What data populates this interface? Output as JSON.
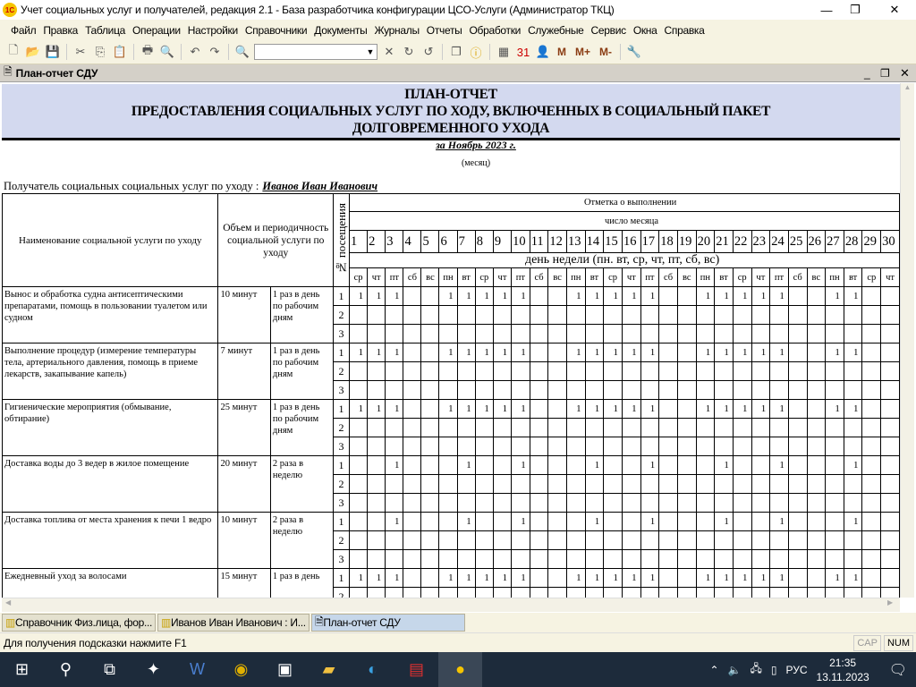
{
  "window": {
    "title": "Учет социальных услуг и получателей, редакция 2.1 - База разработчика конфигурации ЦСО-Услуги (Администратор ТКЦ)",
    "logo": "1С"
  },
  "menu": [
    "Файл",
    "Правка",
    "Таблица",
    "Операции",
    "Настройки",
    "Справочники",
    "Документы",
    "Журналы",
    "Отчеты",
    "Обработки",
    "Служебные",
    "Сервис",
    "Окна",
    "Справка"
  ],
  "toolbar": {
    "search_value": "",
    "m_buttons": [
      "M",
      "M+",
      "M-"
    ]
  },
  "child_window": {
    "title": "План-отчет СДУ"
  },
  "report": {
    "title_lines": [
      "ПЛАН-ОТЧЕТ",
      "ПРЕДОСТАВЛЕНИЯ СОЦИАЛЬНЫХ УСЛУГ ПО ХОДУ, ВКЛЮЧЕННЫХ В СОЦИАЛЬНЫЙ ПАКЕТ",
      "ДОЛГОВРЕМЕННОГО УХОДА"
    ],
    "period": "за Ноябрь 2023 г.",
    "period_caption": "(месяц)",
    "recipient_label": "Получатель социальных социальных услуг по уходу :",
    "recipient_name": "Иванов Иван Иванович",
    "headers": {
      "service": "Наименование социальной услуги по уходу",
      "volume": "Объем и периодичность социальной услуги по уходу",
      "visit_no": "№ посещения",
      "marks": "Отметка о выполнении",
      "day_of_month": "число месяца",
      "weekday": "день недели (пн. вт, ср, чт, пт, сб, вс)"
    },
    "days": [
      1,
      2,
      3,
      4,
      5,
      6,
      7,
      8,
      9,
      10,
      11,
      12,
      13,
      14,
      15,
      16,
      17,
      18,
      19,
      20,
      21,
      22,
      23,
      24,
      25,
      26,
      27,
      28,
      29,
      30
    ],
    "weekdays": [
      "ср",
      "чт",
      "пт",
      "сб",
      "вс",
      "пн",
      "вт",
      "ср",
      "чт",
      "пт",
      "сб",
      "вс",
      "пн",
      "вт",
      "ср",
      "чт",
      "пт",
      "сб",
      "вс",
      "пн",
      "вт",
      "ср",
      "чт",
      "пт",
      "сб",
      "вс",
      "пн",
      "вт",
      "ср",
      "чт"
    ],
    "visits": [
      "1",
      "2",
      "3"
    ],
    "services": [
      {
        "name": "Вынос и обработка судна антисептическими препаратами, помощь в пользовании туалетом или судном",
        "volume": "10 минут",
        "frequency": "1 раз в день по рабочим дням",
        "marks": [
          1,
          2,
          3,
          6,
          7,
          8,
          9,
          10,
          13,
          14,
          15,
          16,
          17,
          20,
          21,
          22,
          23,
          24,
          27,
          28
        ]
      },
      {
        "name": "Выполнение процедур (измерение температуры тела, артериального давления, помощь в приеме лекарств, закапывание капель)",
        "volume": "7 минут",
        "frequency": "1 раз в день по рабочим дням",
        "marks": [
          1,
          2,
          3,
          6,
          7,
          8,
          9,
          10,
          13,
          14,
          15,
          16,
          17,
          20,
          21,
          22,
          23,
          24,
          27,
          28
        ]
      },
      {
        "name": "Гигиенические мероприятия (обмывание, обтирание)",
        "volume": "25  минут",
        "frequency": "1 раз в день по рабочим дням",
        "marks": [
          1,
          2,
          3,
          6,
          7,
          8,
          9,
          10,
          13,
          14,
          15,
          16,
          17,
          20,
          21,
          22,
          23,
          24,
          27,
          28
        ]
      },
      {
        "name": "Доставка воды до 3 ведер в жилое помещение",
        "volume": "20 минут",
        "frequency": "2 раза в неделю",
        "marks": [
          3,
          7,
          10,
          14,
          17,
          21,
          24,
          28
        ]
      },
      {
        "name": "Доставка топлива от места хранения к печи 1 ведро",
        "volume": "10 минут",
        "frequency": "2 раза в неделю",
        "marks": [
          3,
          7,
          10,
          14,
          17,
          21,
          24,
          28
        ]
      },
      {
        "name": "Ежедневный уход за волосами",
        "volume": "15 минут",
        "frequency": "1 раз в день",
        "marks": [
          1,
          2,
          3,
          6,
          7,
          8,
          9,
          10,
          13,
          14,
          15,
          16,
          17,
          20,
          21,
          22,
          23,
          24,
          27,
          28
        ]
      }
    ],
    "mark_value": "1"
  },
  "window_tabs": [
    {
      "label": "Справочник  Физ.лица, фор...",
      "active": false
    },
    {
      "label": "Иванов Иван Иванович  : И...",
      "active": false
    },
    {
      "label": "План-отчет СДУ",
      "active": true
    }
  ],
  "status": {
    "hint": "Для получения подсказки нажмите F1",
    "cap": "CAP",
    "num": "NUM"
  },
  "taskbar": {
    "lang": "РУС",
    "time": "21:35",
    "date": "13.11.2023"
  }
}
